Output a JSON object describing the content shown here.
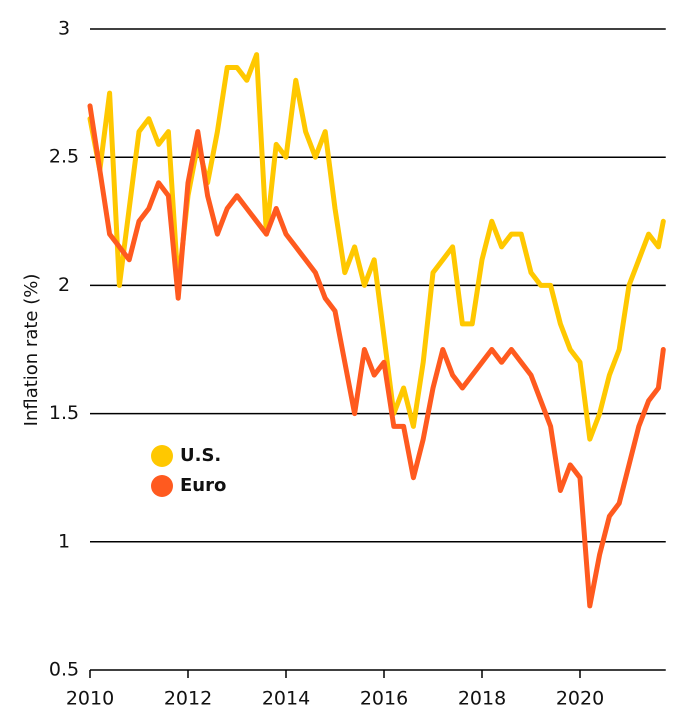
{
  "chart_data": {
    "type": "line",
    "y_label": "Inflation rate (%)",
    "x": [
      2010,
      2010.2,
      2010.4,
      2010.6,
      2010.8,
      2011,
      2011.2,
      2011.4,
      2011.6,
      2011.8,
      2012,
      2012.2,
      2012.4,
      2012.6,
      2012.8,
      2013,
      2013.2,
      2013.4,
      2013.6,
      2013.8,
      2014,
      2014.2,
      2014.4,
      2014.6,
      2014.8,
      2015,
      2015.2,
      2015.4,
      2015.6,
      2015.8,
      2016,
      2016.2,
      2016.4,
      2016.6,
      2016.8,
      2017,
      2017.2,
      2017.4,
      2017.6,
      2017.8,
      2018,
      2018.2,
      2018.4,
      2018.6,
      2018.8,
      2019,
      2019.2,
      2019.4,
      2019.6,
      2019.8,
      2020,
      2020.2,
      2020.4,
      2020.6,
      2020.8,
      2021,
      2021.2,
      2021.4,
      2021.6,
      2021.7
    ],
    "series": [
      {
        "name": "U.S.",
        "color": "#ffc800",
        "values": [
          2.65,
          2.45,
          2.75,
          2.0,
          2.3,
          2.6,
          2.65,
          2.55,
          2.6,
          2.0,
          2.35,
          2.55,
          2.4,
          2.6,
          2.85,
          2.85,
          2.8,
          2.9,
          2.2,
          2.55,
          2.5,
          2.8,
          2.6,
          2.5,
          2.6,
          2.3,
          2.05,
          2.15,
          2.0,
          2.1,
          1.8,
          1.5,
          1.6,
          1.45,
          1.7,
          2.05,
          2.1,
          2.15,
          1.85,
          1.85,
          2.1,
          2.25,
          2.15,
          2.2,
          2.2,
          2.05,
          2.0,
          2.0,
          1.85,
          1.75,
          1.7,
          1.4,
          1.5,
          1.65,
          1.75,
          2.0,
          2.1,
          2.2,
          2.15,
          2.25
        ]
      },
      {
        "name": "Euro",
        "color": "#ff5a1f",
        "values": [
          2.7,
          2.45,
          2.2,
          2.15,
          2.1,
          2.25,
          2.3,
          2.4,
          2.35,
          1.95,
          2.4,
          2.6,
          2.35,
          2.2,
          2.3,
          2.35,
          2.3,
          2.25,
          2.2,
          2.3,
          2.2,
          2.15,
          2.1,
          2.05,
          1.95,
          1.9,
          1.7,
          1.5,
          1.75,
          1.65,
          1.7,
          1.45,
          1.45,
          1.25,
          1.4,
          1.6,
          1.75,
          1.65,
          1.6,
          1.65,
          1.7,
          1.75,
          1.7,
          1.75,
          1.7,
          1.65,
          1.55,
          1.45,
          1.2,
          1.3,
          1.25,
          0.75,
          0.95,
          1.1,
          1.15,
          1.3,
          1.45,
          1.55,
          1.6,
          1.75
        ]
      }
    ],
    "xlim": [
      2010,
      2021.75
    ],
    "xticks": [
      2010,
      2012,
      2014,
      2016,
      2018,
      2020
    ],
    "ylim": [
      0.5,
      3
    ],
    "yticks": [
      0.5,
      1,
      1.5,
      2,
      2.5,
      3
    ],
    "grid": true
  }
}
